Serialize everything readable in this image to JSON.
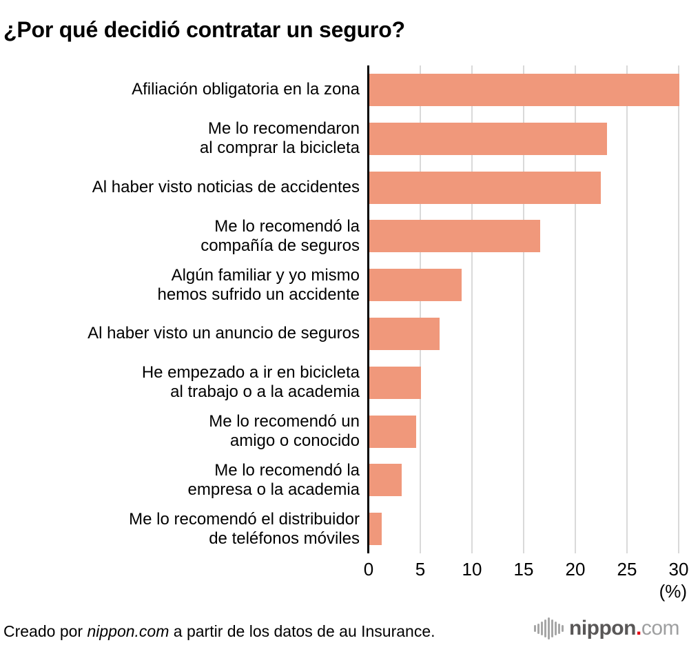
{
  "title": "¿Por qué decidió contratar un seguro?",
  "chart_data": {
    "type": "bar",
    "orientation": "horizontal",
    "title": "¿Por qué decidió contratar un seguro?",
    "categories": [
      "Afiliación obligatoria en la zona",
      "Me lo recomendaron\nal comprar la bicicleta",
      "Al haber visto noticias de accidentes",
      "Me lo recomendó la\ncompañía de seguros",
      "Algún familiar y yo mismo\nhemos sufrido un accidente",
      "Al haber visto un anuncio de seguros",
      "He empezado a ir en bicicleta\nal trabajo o a la academia",
      "Me lo recomendó un\namigo o conocido",
      "Me lo recomendó la\nempresa o la academia",
      "Me lo recomendó el distribuidor\nde teléfonos móviles"
    ],
    "values": [
      30.0,
      23.0,
      22.4,
      16.5,
      8.9,
      6.8,
      5.0,
      4.5,
      3.1,
      1.2
    ],
    "xlabel": "(%)",
    "ylabel": "",
    "xlim": [
      0,
      30
    ],
    "xticks": [
      0,
      5,
      10,
      15,
      20,
      25,
      30
    ],
    "grid": true,
    "legend": false,
    "bar_color": "#f0987b",
    "gridline_color": "#d9d9d9",
    "axis_color": "#000000"
  },
  "footer": {
    "credit_prefix": "Creado por ",
    "credit_brand": "nippon.com",
    "credit_suffix": " a partir de los datos de au Insurance.",
    "logo": {
      "icon": "soundwave-icon",
      "name": "nippon",
      "dot": ".",
      "tld": "com",
      "name_color": "#595757",
      "dot_color": "#e60012",
      "tld_color": "#9e9fa0"
    }
  }
}
